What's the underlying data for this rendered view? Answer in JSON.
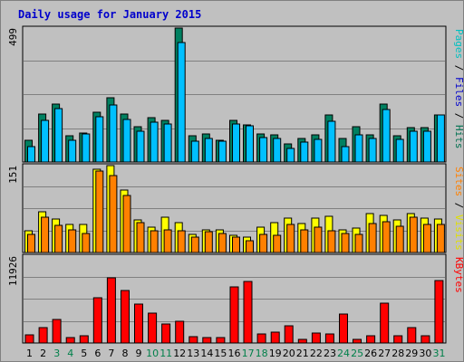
{
  "chart_data": {
    "type": "bar",
    "title": "Daily usage for January 2015",
    "categories": [
      "1",
      "2",
      "3",
      "4",
      "5",
      "6",
      "7",
      "8",
      "9",
      "10",
      "11",
      "12",
      "13",
      "14",
      "15",
      "16",
      "17",
      "18",
      "19",
      "20",
      "21",
      "22",
      "23",
      "24",
      "25",
      "26",
      "27",
      "28",
      "29",
      "30",
      "31"
    ],
    "weekend_days": [
      "3",
      "4",
      "10",
      "11",
      "17",
      "18",
      "24",
      "25",
      "31"
    ],
    "panels": [
      {
        "name": "hits-files-pages",
        "ymax_label": "499",
        "ylim": [
          0,
          499
        ],
        "legend": [
          {
            "text": "Pages",
            "color": "#00c0c0"
          },
          {
            "text": " / ",
            "color": "#000000"
          },
          {
            "text": "Files",
            "color": "#0000cc"
          },
          {
            "text": " / ",
            "color": "#000000"
          },
          {
            "text": "Hits",
            "color": "#007050"
          }
        ],
        "series": [
          {
            "name": "Hits",
            "color": "#008060",
            "values": [
              82,
              180,
              216,
              98,
              108,
              184,
              239,
              178,
              132,
              165,
              156,
              499,
              97,
              104,
              80,
              154,
              137,
              103,
              101,
              67,
              86,
              100,
              176,
              89,
              132,
              100,
              215,
              97,
              127,
              128,
              176
            ]
          },
          {
            "name": "Files",
            "color": "#00c0ff",
            "values": [
              58,
              155,
              200,
              82,
              104,
              168,
              212,
              160,
              115,
              149,
              140,
              446,
              78,
              86,
              77,
              141,
              135,
              92,
              87,
              50,
              74,
              85,
              152,
              56,
              100,
              87,
              196,
              84,
              115,
              115,
              175
            ]
          }
        ]
      },
      {
        "name": "visits-sites",
        "ymax_label": "151",
        "ylim": [
          0,
          151
        ],
        "legend": [
          {
            "text": "Sites",
            "color": "#ff8000"
          },
          {
            "text": " / ",
            "color": "#000000"
          },
          {
            "text": "Visits",
            "color": "#e0e000"
          }
        ],
        "series": [
          {
            "name": "Visits",
            "color": "#ffff00",
            "values": [
              38,
              70,
              58,
              49,
              49,
              145,
              151,
              109,
              56,
              44,
              62,
              52,
              32,
              40,
              39,
              30,
              27,
              44,
              52,
              60,
              51,
              60,
              63,
              40,
              42,
              67,
              64,
              57,
              68,
              59,
              58
            ]
          },
          {
            "name": "Sites",
            "color": "#ff8000",
            "values": [
              32,
              61,
              47,
              39,
              33,
              141,
              133,
              99,
              52,
              37,
              40,
              37,
              27,
              36,
              33,
              27,
              21,
              31,
              30,
              49,
              39,
              44,
              37,
              33,
              31,
              50,
              53,
              45,
              61,
              48,
              49
            ]
          }
        ]
      },
      {
        "name": "kbytes",
        "ymax_label": "11926",
        "ylim": [
          0,
          11926
        ],
        "legend": [
          {
            "text": "KBytes",
            "color": "#ff0000"
          }
        ],
        "series": [
          {
            "name": "KBytes",
            "color": "#ff0000",
            "values": [
              1160,
              2120,
              3250,
              750,
              1050,
              6250,
              8900,
              7250,
              5350,
              4150,
              2550,
              2950,
              900,
              750,
              700,
              7650,
              8400,
              1250,
              1450,
              2300,
              500,
              1400,
              1300,
              4000,
              500,
              950,
              5450,
              950,
              2050,
              950,
              8550
            ]
          }
        ]
      }
    ]
  }
}
